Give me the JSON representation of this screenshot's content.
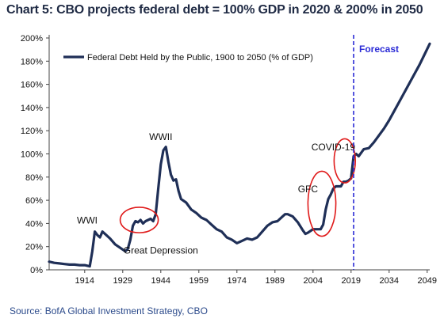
{
  "title": "Chart 5: CBO projects federal debt = 100% GDP in 2020 & 200% in 2050",
  "source": "Source: BofA Global Investment Strategy, CBO",
  "colors": {
    "series": "#1f2f57",
    "forecast_line": "#2b2bd6",
    "circle": "#e01b1b",
    "title": "#1f2a44",
    "source": "#2b4a8b"
  },
  "chart_data": {
    "type": "line",
    "title": "Chart 5: CBO projects federal debt = 100% GDP in 2020 & 200% in 2050",
    "xlabel": "",
    "ylabel": "",
    "xlim": [
      1900,
      2050
    ],
    "ylim": [
      0,
      200
    ],
    "x_ticks": [
      1914,
      1929,
      1944,
      1959,
      1974,
      1989,
      2004,
      2019,
      2034,
      2049
    ],
    "y_ticks": [
      0,
      20,
      40,
      60,
      80,
      100,
      120,
      140,
      160,
      180,
      200
    ],
    "y_tick_format": "%",
    "grid": false,
    "legend_position": "top-left",
    "series": [
      {
        "name": "Federal Debt Held by the Public, 1900 to 2050 (% of GDP)",
        "x": [
          1900,
          1902,
          1904,
          1906,
          1908,
          1910,
          1912,
          1914,
          1916,
          1917,
          1918,
          1919,
          1920,
          1921,
          1922,
          1924,
          1926,
          1928,
          1930,
          1931,
          1932,
          1933,
          1934,
          1935,
          1936,
          1937,
          1938,
          1939,
          1940,
          1941,
          1942,
          1943,
          1944,
          1945,
          1946,
          1947,
          1948,
          1949,
          1950,
          1951,
          1952,
          1954,
          1956,
          1958,
          1960,
          1962,
          1964,
          1966,
          1968,
          1970,
          1972,
          1974,
          1976,
          1978,
          1980,
          1982,
          1984,
          1986,
          1988,
          1990,
          1992,
          1993,
          1994,
          1996,
          1998,
          2000,
          2001,
          2002,
          2004,
          2006,
          2007,
          2008,
          2009,
          2010,
          2011,
          2012,
          2013,
          2014,
          2015,
          2016,
          2017,
          2018,
          2019,
          2020,
          2021,
          2022,
          2024,
          2026,
          2028,
          2030,
          2032,
          2034,
          2036,
          2038,
          2040,
          2042,
          2044,
          2046,
          2048,
          2050
        ],
        "y": [
          7,
          6,
          5.5,
          5,
          4.5,
          4.5,
          4,
          4,
          3,
          16,
          33,
          30,
          28,
          33,
          31,
          27,
          22,
          19,
          16,
          18,
          26,
          38,
          42,
          41,
          43,
          40,
          42,
          43,
          44,
          42,
          48,
          70,
          91,
          103,
          106,
          93,
          82,
          77,
          78,
          68,
          61,
          58,
          52,
          49,
          45,
          43,
          39,
          35,
          33,
          28,
          26,
          23,
          25,
          27,
          26,
          28,
          33,
          38,
          41,
          42,
          46,
          48,
          48,
          46,
          41,
          34,
          31,
          32,
          35,
          35,
          35,
          39,
          52,
          61,
          65,
          70,
          72,
          72,
          72,
          76,
          76,
          77,
          79,
          98,
          100,
          98,
          104,
          105,
          110,
          116,
          122,
          129,
          137,
          145,
          153,
          161,
          169,
          177,
          186,
          195
        ]
      }
    ],
    "forecast_start": 2020,
    "forecast_label": "Forecast",
    "annotations": [
      {
        "label": "WWI",
        "x": 1915,
        "y": 40
      },
      {
        "label": "WWII",
        "x": 1944,
        "y": 112
      },
      {
        "label": "Great Depression",
        "x": 1944,
        "y": 14
      },
      {
        "label": "GFC",
        "x": 2002,
        "y": 67
      },
      {
        "label": "COVID-19",
        "x": 2012,
        "y": 103
      }
    ],
    "highlight_circles": [
      {
        "x": 1935.5,
        "y": 43,
        "rx_years": 7.5,
        "ry": 11
      },
      {
        "x": 2007.5,
        "y": 57,
        "rx_years": 5.5,
        "ry": 28
      },
      {
        "x": 2016.5,
        "y": 94,
        "rx_years": 4.2,
        "ry": 19
      }
    ]
  }
}
